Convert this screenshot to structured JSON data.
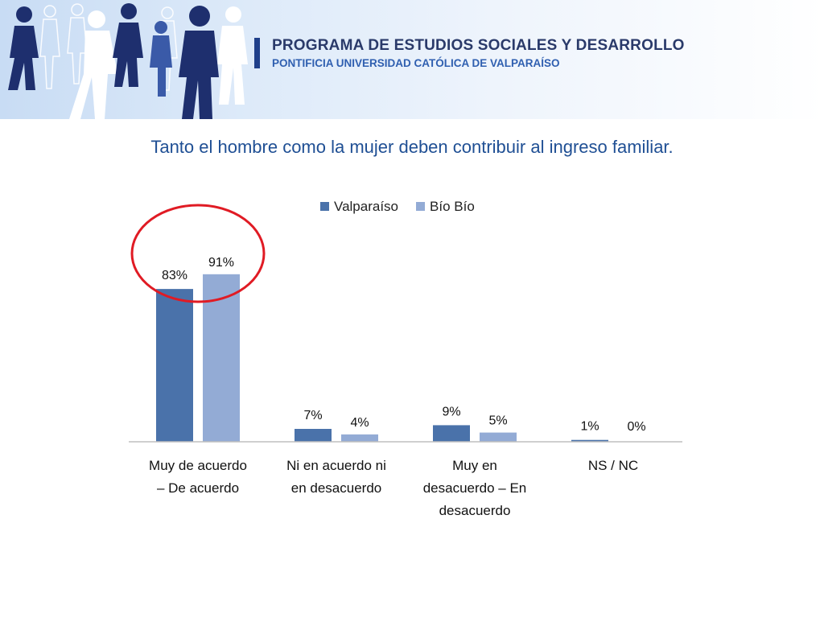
{
  "header": {
    "program": "PROGRAMA DE ESTUDIOS SOCIALES Y DESARROLLO",
    "university": "PONTIFICIA UNIVERSIDAD CATÓLICA DE VALPARAÍSO",
    "figure_colors": [
      "#3a5aa8",
      "#ffffff",
      "#1e2f6e"
    ]
  },
  "slide": {
    "title": "Tanto el hombre como la mujer deben contribuir al ingreso familiar."
  },
  "chart_data": {
    "type": "bar",
    "title": "",
    "xlabel": "",
    "ylabel": "",
    "ylim": [
      0,
      100
    ],
    "grid": false,
    "legend_position": "top",
    "categories": [
      [
        "Muy de acuerdo",
        "– De acuerdo"
      ],
      [
        "Ni en acuerdo ni",
        "en desacuerdo"
      ],
      [
        "Muy en",
        "desacuerdo – En",
        "desacuerdo"
      ],
      [
        "NS / NC"
      ]
    ],
    "series": [
      {
        "name": "Valparaíso",
        "color": "#4a72aa",
        "values": [
          83,
          7,
          9,
          1
        ],
        "labels": [
          "83%",
          "7%",
          "9%",
          "1%"
        ]
      },
      {
        "name": "Bío Bío",
        "color": "#93abd5",
        "values": [
          91,
          4,
          5,
          0
        ],
        "labels": [
          "91%",
          "4%",
          "5%",
          "0%"
        ]
      }
    ],
    "highlight": {
      "category_index": 0,
      "color": "#e01b24"
    }
  }
}
